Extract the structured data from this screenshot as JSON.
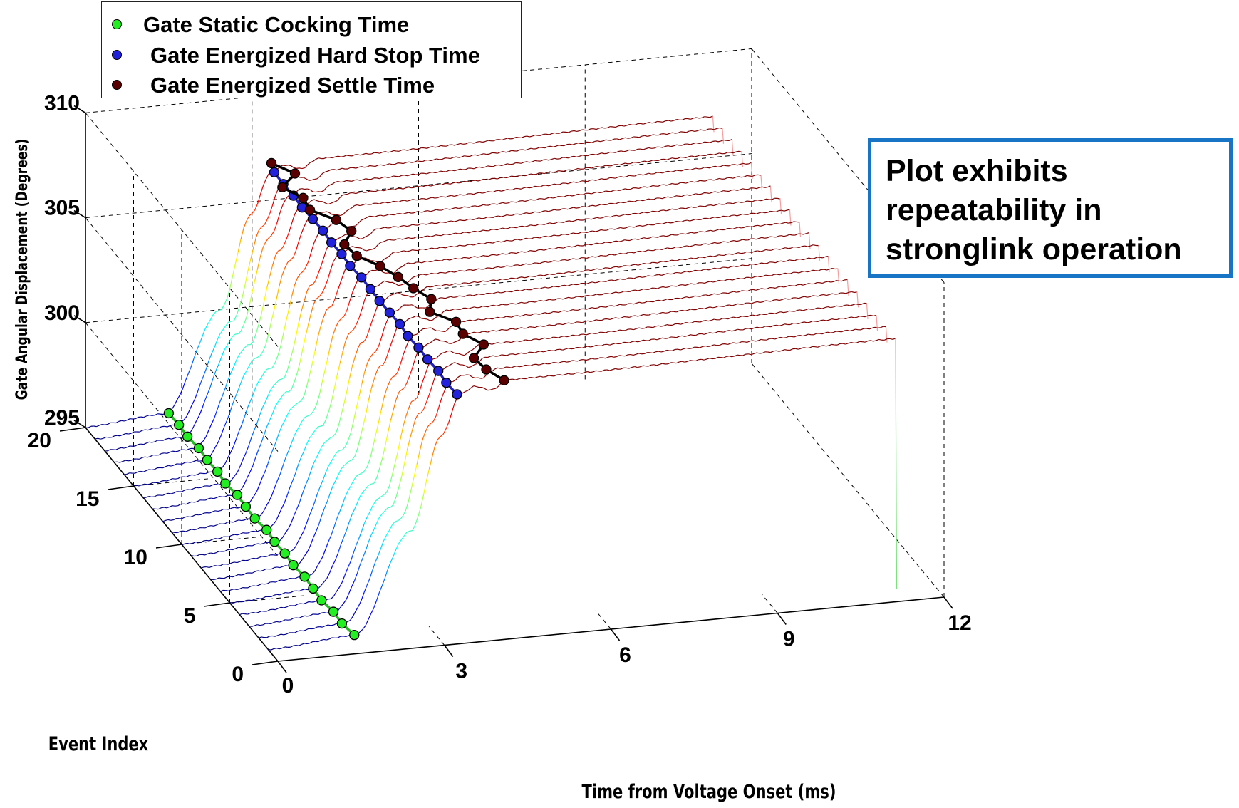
{
  "chart_data": {
    "type": "line",
    "title": "",
    "xlabel": "Time from Voltage Onset (ms)",
    "ylabel": "Event Index",
    "zlabel": "Gate Angular Displacement  (Degrees)",
    "x_ticks": [
      "0",
      "3",
      "6",
      "9",
      "12"
    ],
    "y_ticks": [
      "0",
      "5",
      "10",
      "15",
      "20"
    ],
    "z_ticks": [
      "295",
      "300",
      "305",
      "310"
    ],
    "xlim": [
      0,
      12
    ],
    "ylim": [
      0,
      20
    ],
    "zlim": [
      295,
      310
    ],
    "grid": true,
    "projection": "3d",
    "trace_count": 20,
    "traces": {
      "x_ms": [
        0,
        1.5,
        2.5,
        3.05,
        3.4,
        3.65,
        3.95,
        4.25,
        5.0,
        11.3
      ],
      "z_deg": [
        295.0,
        295.3,
        300.0,
        304.4,
        306.3,
        306.6,
        306.35,
        306.75,
        306.75,
        306.95
      ],
      "description_note": ""
    },
    "series": [
      {
        "name": "Gate Static Cocking Time",
        "color": "#22ee22",
        "event_index": [
          1,
          2,
          3,
          4,
          5,
          6,
          7,
          8,
          9,
          10,
          11,
          12,
          13,
          14,
          15,
          16,
          17,
          18,
          19,
          20
        ],
        "x_ms": [
          1.55,
          1.5,
          1.52,
          1.48,
          1.5,
          1.52,
          1.49,
          1.51,
          1.5,
          1.53,
          1.49,
          1.5,
          1.52,
          1.48,
          1.51,
          1.5,
          1.52,
          1.49,
          1.51,
          1.5
        ],
        "z_deg": [
          295.3,
          295.3,
          295.3,
          295.3,
          295.3,
          295.3,
          295.3,
          295.3,
          295.3,
          295.3,
          295.3,
          295.3,
          295.3,
          295.3,
          295.3,
          295.3,
          295.3,
          295.3,
          295.3,
          295.3
        ]
      },
      {
        "name": "Gate Energized Hard Stop Time",
        "color": "#2222dd",
        "event_index": [
          1,
          2,
          3,
          4,
          5,
          6,
          7,
          8,
          9,
          10,
          11,
          12,
          13,
          14,
          15,
          16,
          17,
          18,
          19,
          20
        ],
        "x_ms": [
          3.4,
          3.38,
          3.41,
          3.39,
          3.4,
          3.38,
          3.41,
          3.4,
          3.39,
          3.4,
          3.41,
          3.38,
          3.4,
          3.39,
          3.41,
          3.4,
          3.38,
          3.4,
          3.39,
          3.4
        ],
        "z_deg": [
          306.3,
          306.3,
          306.3,
          306.3,
          306.3,
          306.3,
          306.3,
          306.3,
          306.3,
          306.3,
          306.3,
          306.3,
          306.3,
          306.3,
          306.3,
          306.3,
          306.3,
          306.3,
          306.3,
          306.3
        ]
      },
      {
        "name": "Gate Energized Settle Time",
        "color": "#5a0000",
        "event_index": [
          1,
          2,
          3,
          4,
          5,
          6,
          7,
          8,
          9,
          10,
          11,
          12,
          13,
          14,
          15,
          16,
          17,
          18,
          19,
          20
        ],
        "x_ms": [
          4.25,
          4.1,
          4.05,
          4.4,
          4.2,
          4.25,
          3.95,
          4.15,
          4.0,
          3.9,
          3.75,
          3.5,
          3.45,
          3.75,
          3.65,
          3.35,
          3.4,
          3.2,
          3.6,
          3.35
        ],
        "z_deg": [
          306.75,
          306.75,
          306.75,
          306.75,
          306.75,
          306.75,
          306.75,
          306.75,
          306.75,
          306.75,
          306.75,
          306.75,
          306.75,
          306.75,
          306.75,
          306.75,
          306.75,
          306.75,
          306.75,
          306.75
        ]
      }
    ],
    "legend": {
      "placement": "top-left",
      "entries": [
        "Gate Static Cocking Time",
        "Gate Energized Hard Stop Time",
        "Gate Energized Settle Time"
      ]
    },
    "annotation": "Plot exhibits\nrepeatability in\nstronglink operation"
  },
  "colors": {
    "callout_border": "#1874c4",
    "axes": "#000000",
    "colormap": "jet"
  }
}
